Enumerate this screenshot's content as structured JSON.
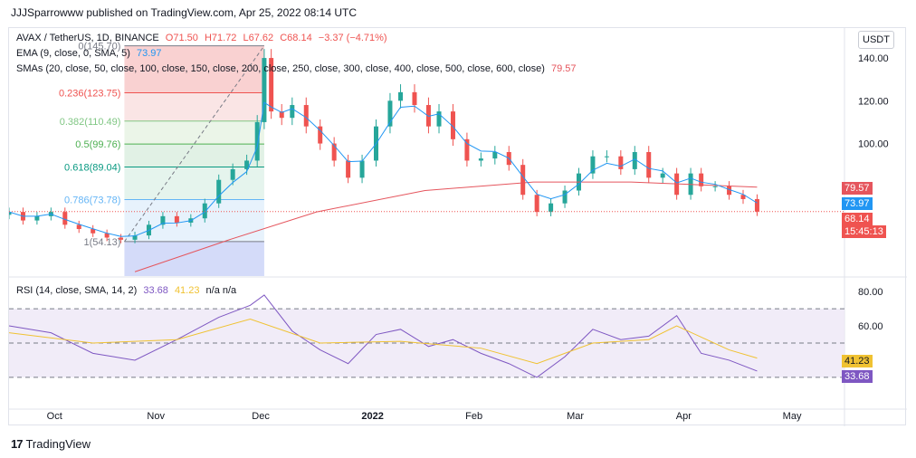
{
  "publisher": "JJJSparrowww published on TradingView.com, Apr 25, 2022 08:14 UTC",
  "legend": {
    "symbol": "AVAX / TetherUS, 1D, BINANCE",
    "ohlc": [
      "O71.50",
      "H71.72",
      "L67.62",
      "C68.14",
      "−3.37 (−4.71%)"
    ],
    "ema_label": "EMA (9, close, 0, SMA, 5)",
    "ema_value": "73.97",
    "sma_label": "SMAs (20, close, 50, close, 100, close, 150, close, 200, close, 250, close, 300, close, 400, close, 500, close, 600, close)",
    "sma_value": "79.57",
    "rsi_label": "RSI (14, close, SMA, 14, 2)",
    "rsi_value": "33.68",
    "rsi_ma_value": "41.23",
    "rsi_na": "n/a  n/a"
  },
  "currency_button": "USDT",
  "price_labels": {
    "sma": "79.57",
    "ema": "73.97",
    "last": "68.14",
    "countdown": "15:45:13",
    "rsi_ma": "41.23",
    "rsi": "33.68"
  },
  "colors": {
    "up": "#26a69a",
    "down": "#ef5350",
    "ema": "#2196f3",
    "sma": "#e5555d",
    "rsi": "#7e57c2",
    "rsi_ma": "#f0c232"
  },
  "footer": {
    "brand": "TradingView",
    "mark": "17"
  },
  "chart_data": [
    {
      "type": "candlestick",
      "title": "AVAX / TetherUS, 1D, BINANCE",
      "ylim": [
        38,
        154
      ],
      "y_ticks": [
        "140.00",
        "120.00",
        "100.00"
      ],
      "x_ticks": [
        "Oct",
        "Nov",
        "Dec",
        "2022",
        "Feb",
        "Mar",
        "Apr",
        "May"
      ],
      "fibonacci": [
        {
          "label": "0(145.70)",
          "value": 145.7
        },
        {
          "label": "0.236(123.75)",
          "value": 123.75
        },
        {
          "label": "0.382(110.49)",
          "value": 110.49
        },
        {
          "label": "0.5(99.76)",
          "value": 99.76
        },
        {
          "label": "0.618(89.04)",
          "value": 89.04
        },
        {
          "label": "0.786(73.78)",
          "value": 73.78
        },
        {
          "label": "1(54.13)",
          "value": 54.13
        }
      ],
      "close_series": [
        {
          "date": "2021-09-23",
          "close": 68
        },
        {
          "date": "2021-09-27",
          "close": 64
        },
        {
          "date": "2021-10-01",
          "close": 66
        },
        {
          "date": "2021-10-05",
          "close": 68
        },
        {
          "date": "2021-10-09",
          "close": 62
        },
        {
          "date": "2021-10-13",
          "close": 60
        },
        {
          "date": "2021-10-17",
          "close": 58
        },
        {
          "date": "2021-10-21",
          "close": 56
        },
        {
          "date": "2021-10-25",
          "close": 55
        },
        {
          "date": "2021-10-29",
          "close": 57
        },
        {
          "date": "2021-11-02",
          "close": 62
        },
        {
          "date": "2021-11-06",
          "close": 66
        },
        {
          "date": "2021-11-10",
          "close": 63
        },
        {
          "date": "2021-11-14",
          "close": 65
        },
        {
          "date": "2021-11-18",
          "close": 72
        },
        {
          "date": "2021-11-22",
          "close": 83
        },
        {
          "date": "2021-11-26",
          "close": 88
        },
        {
          "date": "2021-11-30",
          "close": 92
        },
        {
          "date": "2021-12-03",
          "close": 110
        },
        {
          "date": "2021-12-05",
          "close": 140
        },
        {
          "date": "2021-12-07",
          "close": 115
        },
        {
          "date": "2021-12-10",
          "close": 112
        },
        {
          "date": "2021-12-13",
          "close": 118
        },
        {
          "date": "2021-12-17",
          "close": 108
        },
        {
          "date": "2021-12-21",
          "close": 100
        },
        {
          "date": "2021-12-25",
          "close": 92
        },
        {
          "date": "2021-12-29",
          "close": 84
        },
        {
          "date": "2022-01-02",
          "close": 92
        },
        {
          "date": "2022-01-06",
          "close": 108
        },
        {
          "date": "2022-01-10",
          "close": 120
        },
        {
          "date": "2022-01-13",
          "close": 124
        },
        {
          "date": "2022-01-17",
          "close": 118
        },
        {
          "date": "2022-01-21",
          "close": 108
        },
        {
          "date": "2022-01-24",
          "close": 115
        },
        {
          "date": "2022-01-28",
          "close": 102
        },
        {
          "date": "2022-02-01",
          "close": 92
        },
        {
          "date": "2022-02-05",
          "close": 93
        },
        {
          "date": "2022-02-09",
          "close": 96
        },
        {
          "date": "2022-02-13",
          "close": 90
        },
        {
          "date": "2022-02-17",
          "close": 76
        },
        {
          "date": "2022-02-21",
          "close": 68
        },
        {
          "date": "2022-02-25",
          "close": 72
        },
        {
          "date": "2022-03-01",
          "close": 78
        },
        {
          "date": "2022-03-05",
          "close": 86
        },
        {
          "date": "2022-03-09",
          "close": 94
        },
        {
          "date": "2022-03-13",
          "close": 94
        },
        {
          "date": "2022-03-17",
          "close": 88
        },
        {
          "date": "2022-03-21",
          "close": 96
        },
        {
          "date": "2022-03-25",
          "close": 84
        },
        {
          "date": "2022-03-29",
          "close": 86
        },
        {
          "date": "2022-04-02",
          "close": 76
        },
        {
          "date": "2022-04-06",
          "close": 86
        },
        {
          "date": "2022-04-09",
          "close": 80
        },
        {
          "date": "2022-04-13",
          "close": 80
        },
        {
          "date": "2022-04-17",
          "close": 76
        },
        {
          "date": "2022-04-21",
          "close": 74
        },
        {
          "date": "2022-04-25",
          "close": 68.14
        }
      ],
      "ema_last": 73.97,
      "sma_last": 79.57,
      "last_price": 68.14
    },
    {
      "type": "line",
      "title": "RSI (14, close, SMA, 14, 2)",
      "ylim": [
        12,
        88
      ],
      "y_ticks": [
        "80.00",
        "60.00"
      ],
      "levels": [
        70,
        50,
        30
      ],
      "series": [
        {
          "name": "RSI",
          "x_dates": [
            "2021-09-23",
            "2021-10-05",
            "2021-10-17",
            "2021-10-29",
            "2021-11-10",
            "2021-11-22",
            "2021-12-01",
            "2021-12-05",
            "2021-12-13",
            "2021-12-21",
            "2021-12-29",
            "2022-01-06",
            "2022-01-13",
            "2022-01-21",
            "2022-01-28",
            "2022-02-05",
            "2022-02-13",
            "2022-02-21",
            "2022-03-01",
            "2022-03-09",
            "2022-03-17",
            "2022-03-25",
            "2022-04-02",
            "2022-04-09",
            "2022-04-17",
            "2022-04-25"
          ],
          "values": [
            60,
            56,
            44,
            40,
            52,
            65,
            72,
            78,
            57,
            46,
            38,
            55,
            58,
            48,
            52,
            44,
            38,
            30,
            42,
            58,
            52,
            54,
            66,
            44,
            40,
            33.68
          ]
        },
        {
          "name": "RSI-based MA",
          "x_dates": [
            "2021-09-23",
            "2021-10-17",
            "2021-11-10",
            "2021-12-01",
            "2021-12-21",
            "2022-01-13",
            "2022-02-05",
            "2022-02-21",
            "2022-03-09",
            "2022-03-25",
            "2022-04-02",
            "2022-04-17",
            "2022-04-25"
          ],
          "values": [
            56,
            50,
            52,
            64,
            50,
            51,
            47,
            38,
            50,
            52,
            60,
            46,
            41.23
          ]
        }
      ]
    }
  ]
}
